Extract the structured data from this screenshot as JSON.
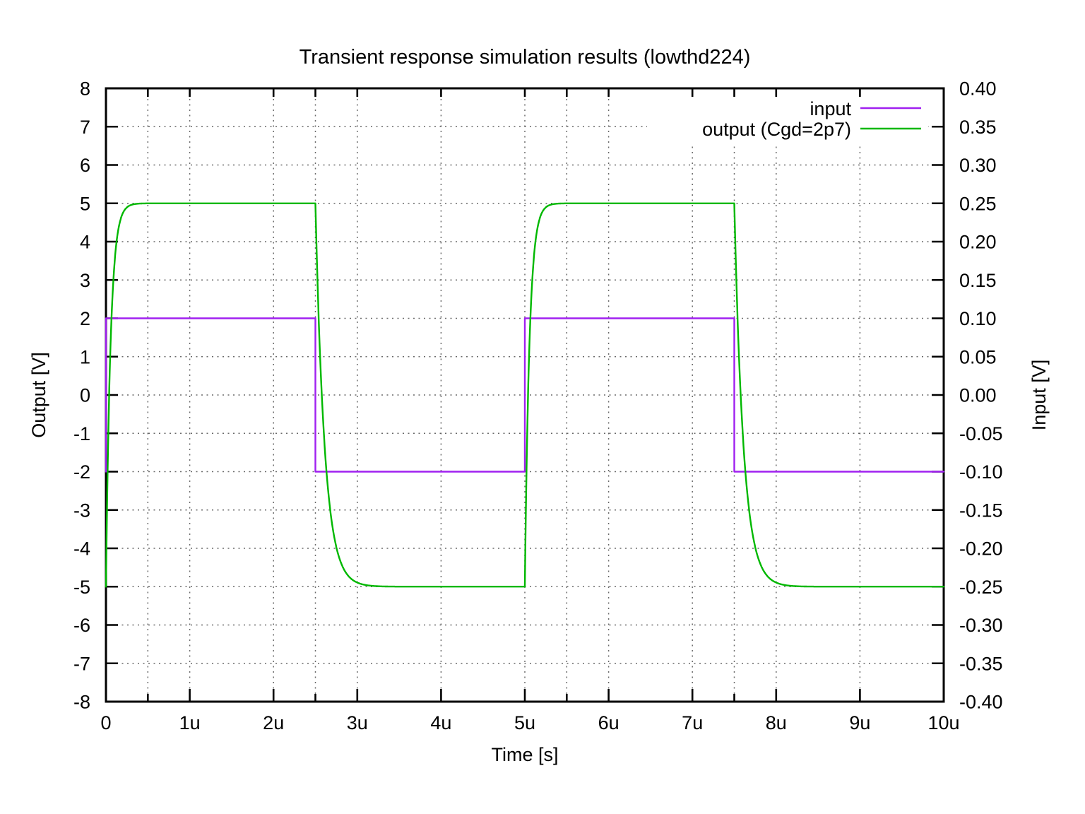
{
  "chart_data": {
    "type": "line",
    "title": "Transient response simulation results (lowthd224)",
    "xlabel": "Time [s]",
    "ylabel": "Output [V]",
    "y2label": "Input [V]",
    "background": "#ffffff",
    "grid": true,
    "x_axis": {
      "min": 0,
      "max": 10,
      "unit": "microseconds",
      "tick_values": [
        0,
        1,
        2,
        3,
        4,
        5,
        6,
        7,
        8,
        9,
        10
      ],
      "tick_labels": [
        "0",
        "1u",
        "2u",
        "3u",
        "4u",
        "5u",
        "6u",
        "7u",
        "8u",
        "9u",
        "10u"
      ],
      "extra_tick_values": [
        0.5,
        2.5,
        5.5,
        7.5
      ]
    },
    "y_axis_left": {
      "min": -8,
      "max": 8,
      "tick_values": [
        -8,
        -7,
        -6,
        -5,
        -4,
        -3,
        -2,
        -1,
        0,
        1,
        2,
        3,
        4,
        5,
        6,
        7,
        8
      ],
      "tick_labels": [
        "-8",
        "-7",
        "-6",
        "-5",
        "-4",
        "-3",
        "-2",
        "-1",
        "0",
        "1",
        "2",
        "3",
        "4",
        "5",
        "6",
        "7",
        "8"
      ]
    },
    "y_axis_right": {
      "min": -0.4,
      "max": 0.4,
      "tick_values": [
        -0.4,
        -0.35,
        -0.3,
        -0.25,
        -0.2,
        -0.15,
        -0.1,
        -0.05,
        0.0,
        0.05,
        0.1,
        0.15,
        0.2,
        0.25,
        0.3,
        0.35,
        0.4
      ],
      "tick_labels": [
        "-0.40",
        "-0.35",
        "-0.30",
        "-0.25",
        "-0.20",
        "-0.15",
        "-0.10",
        "-0.05",
        "0.00",
        "0.05",
        "0.10",
        "0.15",
        "0.20",
        "0.25",
        "0.30",
        "0.35",
        "0.40"
      ]
    },
    "legend": {
      "position": "top-right",
      "entries": [
        {
          "label": "input",
          "color": "#a020f0"
        },
        {
          "label": "output (Cgd=2p7)",
          "color": "#00b800"
        }
      ]
    },
    "series": [
      {
        "name": "input",
        "axis": "right",
        "color": "#a020f0",
        "shape": "square-wave",
        "points": [
          [
            0,
            -0.1
          ],
          [
            0,
            0.1
          ],
          [
            2.5,
            0.1
          ],
          [
            2.5,
            -0.1
          ],
          [
            5,
            -0.1
          ],
          [
            5,
            0.1
          ],
          [
            7.5,
            0.1
          ],
          [
            7.5,
            -0.1
          ],
          [
            10,
            -0.1
          ]
        ]
      },
      {
        "name": "output (Cgd=2p7)",
        "axis": "left",
        "color": "#00b800",
        "shape": "piecewise-exponential",
        "segments": [
          {
            "t_start": 0.0,
            "t_end": 2.5,
            "v_from": -5,
            "v_to": 5,
            "tau": 0.055
          },
          {
            "t_start": 2.5,
            "t_end": 5.0,
            "v_from": 5,
            "v_to": -5,
            "tau": 0.11
          },
          {
            "t_start": 5.0,
            "t_end": 7.5,
            "v_from": -5,
            "v_to": 5,
            "tau": 0.055
          },
          {
            "t_start": 7.5,
            "t_end": 10.0,
            "v_from": 5,
            "v_to": -5,
            "tau": 0.11
          }
        ]
      }
    ],
    "style": {
      "grid_color": "#454545",
      "border_color": "#000000"
    }
  }
}
